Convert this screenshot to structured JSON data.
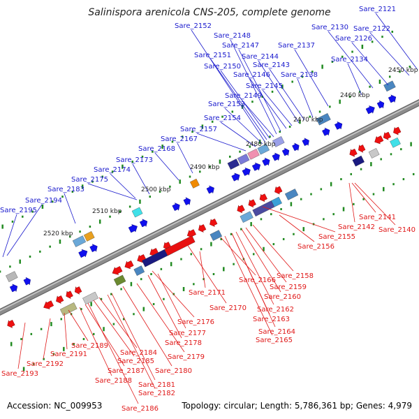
{
  "title": "Salinispora arenicola CNS-205, complete genome",
  "footer": {
    "accession": "Accession: NC_009953",
    "topology": "Topology: circular; Length: 5,786,361 bp; Genes: 4,979"
  },
  "colors": {
    "forward_label": "#1a1acd",
    "reverse_label": "#e01818",
    "backbone": "#8c8c8c",
    "ruler_dot": "#228b22",
    "forward_arrow": "#1010ee",
    "reverse_arrow": "#ee1010"
  },
  "ticks": [
    "2450 kbp",
    "2460 kbp",
    "2470 kbp",
    "2480 kbp",
    "2490 kbp",
    "2500 kbp",
    "2510 kbp",
    "2520 kbp"
  ],
  "forward_labels": [
    "Sare_2121",
    "Sare_2122",
    "Sare_2126",
    "Sare_2130",
    "Sare_2134",
    "Sare_2137",
    "Sare_2138",
    "Sare_2143",
    "Sare_2144",
    "Sare_2145",
    "Sare_2146",
    "Sare_2147",
    "Sare_2148",
    "Sare_2149",
    "Sare_2150",
    "Sare_2151",
    "Sare_2152",
    "Sare_2153",
    "Sare_2154",
    "Sare_2157",
    "Sare_2167",
    "Sare_2168",
    "Sare_2173",
    "Sare_2174",
    "Sare_2175",
    "Sare_2183",
    "Sare_2194",
    "Sare_2195"
  ],
  "reverse_labels": [
    "Sare_2140",
    "Sare_2141",
    "Sare_2142",
    "Sare_2155",
    "Sare_2156",
    "Sare_2158",
    "Sare_2159",
    "Sare_2160",
    "Sare_2162",
    "Sare_2163",
    "Sare_2164",
    "Sare_2165",
    "Sare_2166",
    "Sare_2170",
    "Sare_2171",
    "Sare_2176",
    "Sare_2177",
    "Sare_2178",
    "Sare_2179",
    "Sare_2180",
    "Sare_2181",
    "Sare_2182",
    "Sare_2184",
    "Sare_2185",
    "Sare_2186",
    "Sare_2187",
    "Sare_2188",
    "Sare_2189",
    "Sare_2191",
    "Sare_2192",
    "Sare_2193"
  ]
}
